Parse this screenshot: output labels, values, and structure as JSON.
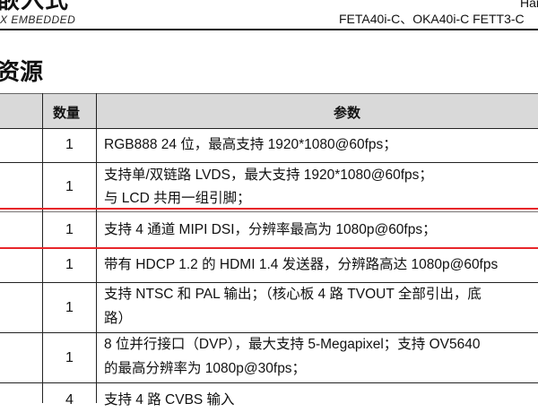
{
  "header": {
    "logo_cn": "嵌入式",
    "logo_en": "X EMBEDDED",
    "right_text": "Har",
    "models": "FETA40i-C、OKA40i-C  FETT3-C"
  },
  "section_title": "资源",
  "table": {
    "headers": {
      "qty": "数量",
      "params": "参数"
    },
    "rows": [
      {
        "qty": "1",
        "lines": [
          "RGB888 24 位，最高支持 1920*1080@60fps；"
        ]
      },
      {
        "qty": "1",
        "lines": [
          "支持单/双链路 LVDS，最大支持 1920*1080@60fps；",
          "与 LCD 共用一组引脚；"
        ]
      },
      {
        "qty": "1",
        "lines": [
          "支持 4 通道 MIPI DSI，分辨率最高为 1080p@60fps；"
        ],
        "highlighted": true
      },
      {
        "qty": "1",
        "lines": [
          "带有 HDCP 1.2 的 HDMI 1.4 发送器，分辨路高达  1080p@60fps"
        ]
      },
      {
        "qty": "1",
        "lines": [
          "支持 NTSC 和 PAL 输出；（核心板 4 路 TVOUT 全部引出，底",
          "路）"
        ]
      },
      {
        "qty": "1",
        "lines": [
          "8 位并行接口（DVP），最大支持 5-Megapixel；支持  OV5640",
          "的最高分辨率为 1080p@30fps；"
        ]
      },
      {
        "qty": "4",
        "lines": [
          "支持 4 路 CVBS  输入"
        ]
      }
    ]
  },
  "colors": {
    "highlight": "#e8262a",
    "header_bg": "#d9d9d9"
  }
}
